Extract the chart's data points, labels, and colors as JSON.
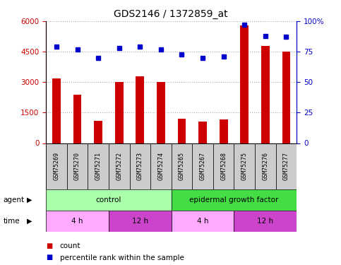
{
  "title": "GDS2146 / 1372859_at",
  "samples": [
    "GSM75269",
    "GSM75270",
    "GSM75271",
    "GSM75272",
    "GSM75273",
    "GSM75274",
    "GSM75265",
    "GSM75267",
    "GSM75268",
    "GSM75275",
    "GSM75276",
    "GSM75277"
  ],
  "counts": [
    3200,
    2400,
    1100,
    3000,
    3300,
    3000,
    1200,
    1050,
    1150,
    5800,
    4800,
    4500
  ],
  "percentile": [
    79,
    77,
    70,
    78,
    79,
    77,
    73,
    70,
    71,
    97,
    88,
    87
  ],
  "bar_color": "#cc0000",
  "dot_color": "#0000cc",
  "ylim_left": [
    0,
    6000
  ],
  "ylim_right": [
    0,
    100
  ],
  "yticks_left": [
    0,
    1500,
    3000,
    4500,
    6000
  ],
  "ytick_labels_left": [
    "0",
    "1500",
    "3000",
    "4500",
    "6000"
  ],
  "yticks_right": [
    0,
    25,
    50,
    75,
    100
  ],
  "ytick_labels_right": [
    "0",
    "25",
    "50",
    "75",
    "100%"
  ],
  "agent_groups": [
    {
      "label": "control",
      "start": 0,
      "end": 6,
      "color": "#aaffaa"
    },
    {
      "label": "epidermal growth factor",
      "start": 6,
      "end": 12,
      "color": "#44dd44"
    }
  ],
  "time_groups": [
    {
      "label": "4 h",
      "start": 0,
      "end": 3,
      "color": "#ffaaff"
    },
    {
      "label": "12 h",
      "start": 3,
      "end": 6,
      "color": "#cc44cc"
    },
    {
      "label": "4 h",
      "start": 6,
      "end": 9,
      "color": "#ffaaff"
    },
    {
      "label": "12 h",
      "start": 9,
      "end": 12,
      "color": "#cc44cc"
    }
  ],
  "legend_items": [
    {
      "label": "count",
      "color": "#cc0000"
    },
    {
      "label": "percentile rank within the sample",
      "color": "#0000cc"
    }
  ],
  "grid_color": "#aaaaaa",
  "plot_bg": "#ffffff",
  "sample_box_color": "#cccccc",
  "bar_width": 0.4
}
